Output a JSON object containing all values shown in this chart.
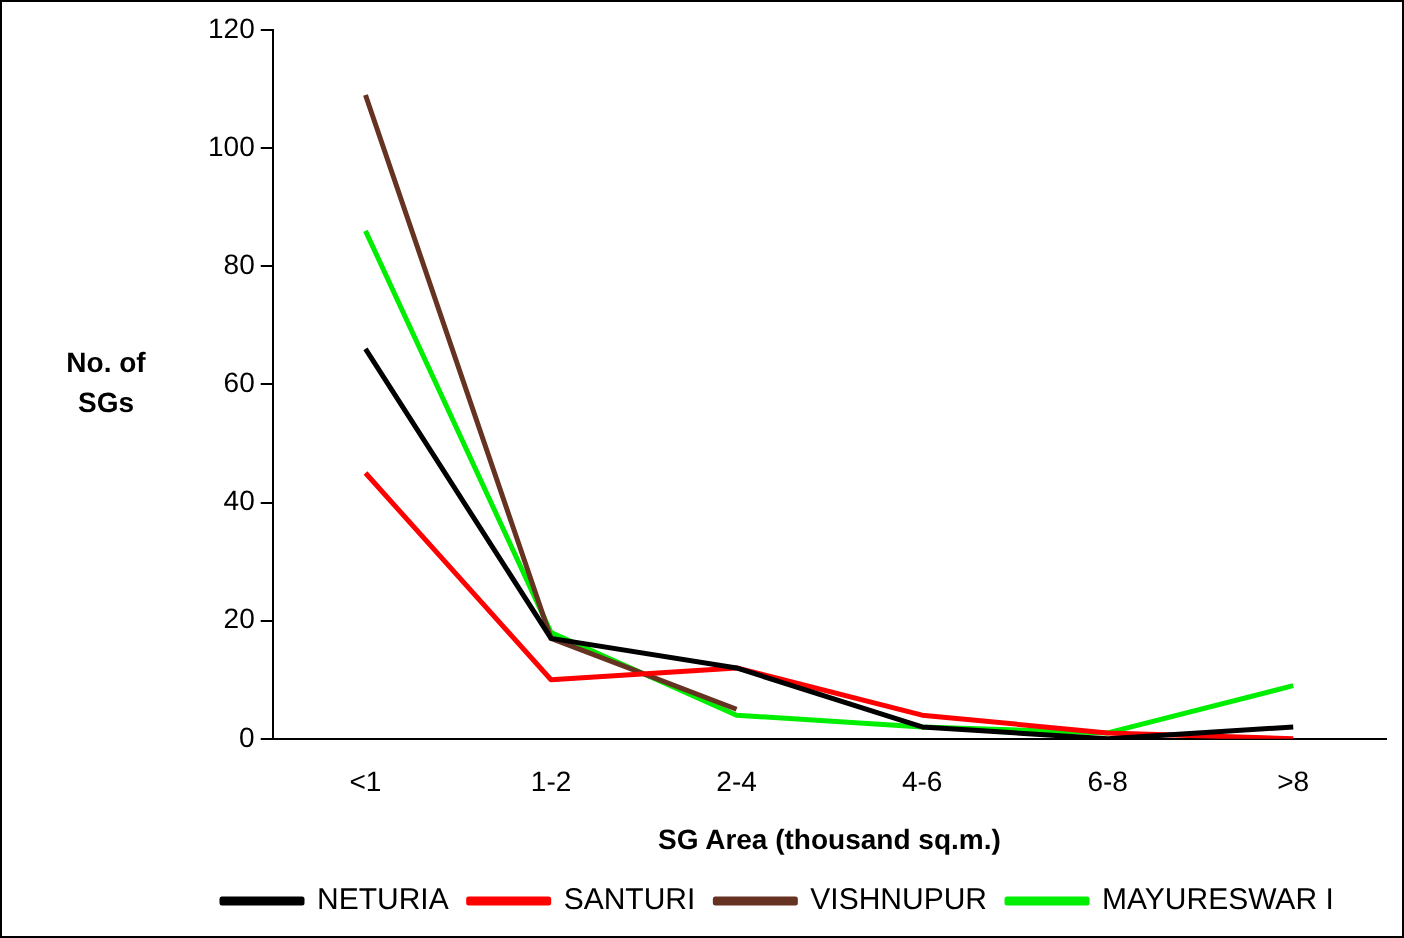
{
  "chart_data": {
    "type": "line",
    "xlabel": "SG Area (thousand sq.m.)",
    "ylabel": "No. of SGs",
    "categories": [
      "<1",
      "1-2",
      "2-4",
      "4-6",
      "6-8",
      ">8"
    ],
    "ylim": [
      0,
      120
    ],
    "yticks": [
      0,
      20,
      40,
      60,
      80,
      100,
      120
    ],
    "grid": false,
    "legend": "bottom",
    "marker": "none",
    "line_style": "solid",
    "series": [
      {
        "name": "NETURIA",
        "color": "#000000",
        "values": [
          66,
          17,
          12,
          2,
          0,
          2
        ]
      },
      {
        "name": "SANTURI",
        "color": "#ff0000",
        "values": [
          45,
          10,
          12,
          4,
          1,
          0
        ]
      },
      {
        "name": "VISHNUPUR",
        "color": "#663322",
        "values": [
          109,
          17,
          5,
          null,
          null,
          null
        ]
      },
      {
        "name": "MAYURESWAR I",
        "color": "#00ee00",
        "values": [
          86,
          18,
          4,
          2,
          1,
          9
        ]
      }
    ]
  }
}
